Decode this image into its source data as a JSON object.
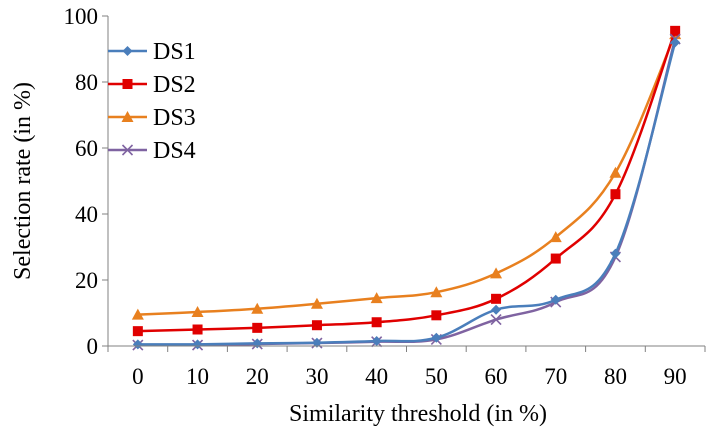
{
  "chart_data": {
    "type": "line",
    "title": "",
    "xlabel": "Similarity threshold (in %)",
    "ylabel": "Selection rate (in %)",
    "categories": [
      "0",
      "10",
      "20",
      "30",
      "40",
      "50",
      "60",
      "70",
      "80",
      "90"
    ],
    "ylim": [
      0,
      100
    ],
    "yticks": [
      "0",
      "20",
      "40",
      "60",
      "80",
      "100"
    ],
    "grid": false,
    "legend_position": "top-left",
    "series": [
      {
        "name": "DS1",
        "color": "#4a7ebb",
        "marker": "diamond",
        "values": [
          0.5,
          0.5,
          0.8,
          1.0,
          1.5,
          2.5,
          11.0,
          14.0,
          28.0,
          92.0
        ]
      },
      {
        "name": "DS2",
        "color": "#e00000",
        "marker": "square",
        "values": [
          4.5,
          5.0,
          5.5,
          6.3,
          7.2,
          9.3,
          14.3,
          26.5,
          46.0,
          95.5
        ]
      },
      {
        "name": "DS3",
        "color": "#e8801f",
        "marker": "triangle",
        "values": [
          9.5,
          10.3,
          11.3,
          12.8,
          14.5,
          16.3,
          22.0,
          33.0,
          52.5,
          94.5
        ]
      },
      {
        "name": "DS4",
        "color": "#7f63a1",
        "marker": "x",
        "values": [
          0.3,
          0.3,
          0.6,
          0.9,
          1.3,
          2.0,
          8.0,
          13.3,
          27.0,
          93.0
        ]
      }
    ]
  }
}
